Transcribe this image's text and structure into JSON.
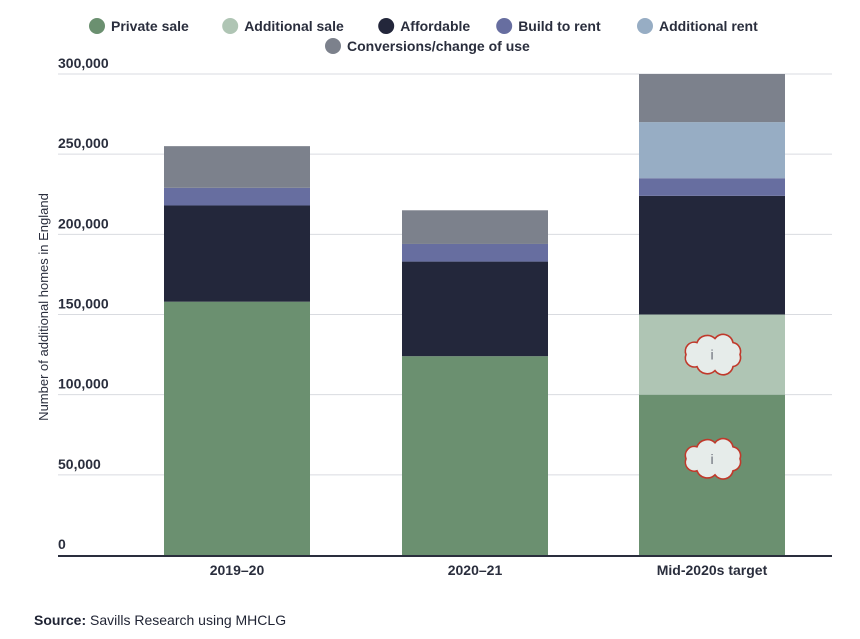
{
  "chart_data": {
    "type": "bar",
    "stacked": true,
    "categories": [
      "2019–20",
      "2020–21",
      "Mid-2020s target"
    ],
    "series": [
      {
        "name": "Private sale",
        "color": "#6b9070",
        "values": [
          158000,
          124000,
          100000
        ]
      },
      {
        "name": "Additional sale",
        "color": "#afc5b4",
        "values": [
          0,
          0,
          50000
        ]
      },
      {
        "name": "Affordable",
        "color": "#23273b",
        "values": [
          60000,
          59000,
          74000
        ]
      },
      {
        "name": "Build to rent",
        "color": "#676ea0",
        "values": [
          11000,
          11000,
          11000
        ]
      },
      {
        "name": "Additional rent",
        "color": "#97adc4",
        "values": [
          0,
          0,
          35000
        ]
      },
      {
        "name": "Conversions/change of use",
        "color": "#7c818c",
        "values": [
          26000,
          21000,
          30000
        ]
      }
    ],
    "ylabel": "Number of additional homes in England",
    "ylim": [
      0,
      300000
    ],
    "yticks": [
      0,
      50000,
      100000,
      150000,
      200000,
      250000,
      300000
    ],
    "ytick_labels": [
      "0",
      "50,000",
      "100,000",
      "150,000",
      "200,000",
      "250,000",
      "300,000"
    ],
    "grid": true,
    "legend_position": "top",
    "annotations": [
      {
        "category": "Mid-2020s target",
        "series": "Additional sale",
        "icon": "info-cloud-icon",
        "text": "i"
      },
      {
        "category": "Mid-2020s target",
        "series": "Private sale",
        "icon": "info-cloud-icon",
        "text": "i"
      }
    ]
  },
  "source": {
    "label": "Source:",
    "text": " Savills Research using MHCLG"
  }
}
